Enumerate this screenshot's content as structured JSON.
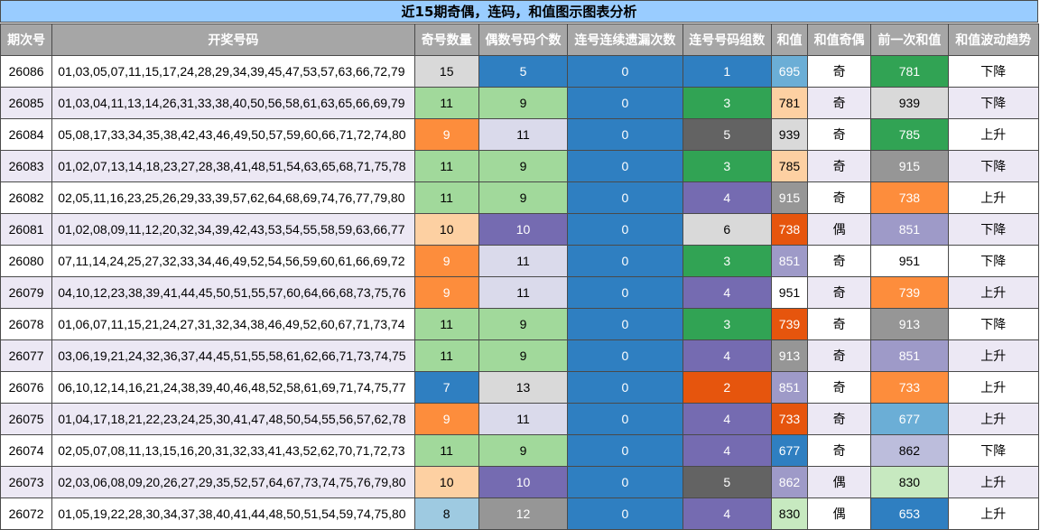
{
  "title": "近15期奇偶，连码，和值图示图表分析",
  "headers": [
    "期次号",
    "开奖号码",
    "奇号数量",
    "偶数号码个数",
    "连号连续遗漏次数",
    "连号号码组数",
    "和值",
    "和值奇偶",
    "前一次和值",
    "和值波动趋势"
  ],
  "colors": {
    "lightgray": "#d9d9d9",
    "blue": "#2f7fc1",
    "lightblue": "#6baed6",
    "paleblue": "#9ecae1",
    "orange": "#fd8d3c",
    "peach": "#fdd0a2",
    "darkorange": "#e6550d",
    "green": "#31a354",
    "lightgreen": "#a1d99b",
    "palegreen": "#c7e9c0",
    "purple": "#756bb1",
    "lavender": "#dadaeb",
    "midlavender": "#bcbddc",
    "slate": "#9e9ac8",
    "darkgray": "#636363",
    "gray": "#969696",
    "white": "#ffffff",
    "stripe": "#ece8f4"
  },
  "rows": [
    {
      "period": "26086",
      "draw": "01,03,05,07,11,15,17,24,28,29,34,39,45,47,53,57,63,66,72,79",
      "odd": "15",
      "odd_bg": "lightgray",
      "even": "5",
      "even_bg": "blue",
      "miss": "0",
      "groups": "1",
      "groups_bg": "blue",
      "sum": "695",
      "sum_bg": "lightblue",
      "parity": "奇",
      "prev": "781",
      "prev_bg": "green",
      "trend": "下降"
    },
    {
      "period": "26085",
      "draw": "01,03,04,11,13,14,26,31,33,38,40,50,56,58,61,63,65,66,69,79",
      "odd": "11",
      "odd_bg": "lightgreen",
      "even": "9",
      "even_bg": "lightgreen",
      "miss": "0",
      "groups": "3",
      "groups_bg": "green",
      "sum": "781",
      "sum_bg": "peach",
      "parity": "奇",
      "prev": "939",
      "prev_bg": "lightgray",
      "trend": "下降"
    },
    {
      "period": "26084",
      "draw": "05,08,17,33,34,35,38,42,43,46,49,50,57,59,60,66,71,72,74,80",
      "odd": "9",
      "odd_bg": "orange",
      "even": "11",
      "even_bg": "lavender",
      "miss": "0",
      "groups": "5",
      "groups_bg": "darkgray",
      "sum": "939",
      "sum_bg": "lightgray",
      "parity": "奇",
      "prev": "785",
      "prev_bg": "green",
      "trend": "上升"
    },
    {
      "period": "26083",
      "draw": "01,02,07,13,14,18,23,27,28,38,41,48,51,54,63,65,68,71,75,78",
      "odd": "11",
      "odd_bg": "lightgreen",
      "even": "9",
      "even_bg": "lightgreen",
      "miss": "0",
      "groups": "3",
      "groups_bg": "green",
      "sum": "785",
      "sum_bg": "peach",
      "parity": "奇",
      "prev": "915",
      "prev_bg": "gray",
      "trend": "下降"
    },
    {
      "period": "26082",
      "draw": "02,05,11,16,23,25,26,29,33,39,57,62,64,68,69,74,76,77,79,80",
      "odd": "11",
      "odd_bg": "lightgreen",
      "even": "9",
      "even_bg": "lightgreen",
      "miss": "0",
      "groups": "4",
      "groups_bg": "purple",
      "sum": "915",
      "sum_bg": "gray",
      "parity": "奇",
      "prev": "738",
      "prev_bg": "orange",
      "trend": "上升"
    },
    {
      "period": "26081",
      "draw": "01,02,08,09,11,12,20,32,34,39,42,43,53,54,55,58,59,63,66,77",
      "odd": "10",
      "odd_bg": "peach",
      "even": "10",
      "even_bg": "purple",
      "miss": "0",
      "groups": "6",
      "groups_bg": "lightgray",
      "sum": "738",
      "sum_bg": "darkorange",
      "parity": "偶",
      "prev": "851",
      "prev_bg": "slate",
      "trend": "下降"
    },
    {
      "period": "26080",
      "draw": "07,11,14,24,25,27,32,33,34,46,49,52,54,56,59,60,61,66,69,72",
      "odd": "9",
      "odd_bg": "orange",
      "even": "11",
      "even_bg": "lavender",
      "miss": "0",
      "groups": "3",
      "groups_bg": "green",
      "sum": "851",
      "sum_bg": "slate",
      "parity": "奇",
      "prev": "951",
      "prev_bg": "white",
      "trend": "下降"
    },
    {
      "period": "26079",
      "draw": "04,10,12,23,38,39,41,44,45,50,51,55,57,60,64,66,68,73,75,76",
      "odd": "9",
      "odd_bg": "orange",
      "even": "11",
      "even_bg": "lavender",
      "miss": "0",
      "groups": "4",
      "groups_bg": "purple",
      "sum": "951",
      "sum_bg": "white",
      "parity": "奇",
      "prev": "739",
      "prev_bg": "orange",
      "trend": "上升"
    },
    {
      "period": "26078",
      "draw": "01,06,07,11,15,21,24,27,31,32,34,38,46,49,52,60,67,71,73,74",
      "odd": "11",
      "odd_bg": "lightgreen",
      "even": "9",
      "even_bg": "lightgreen",
      "miss": "0",
      "groups": "3",
      "groups_bg": "green",
      "sum": "739",
      "sum_bg": "darkorange",
      "parity": "奇",
      "prev": "913",
      "prev_bg": "gray",
      "trend": "下降"
    },
    {
      "period": "26077",
      "draw": "03,06,19,21,24,32,36,37,44,45,51,55,58,61,62,66,71,73,74,75",
      "odd": "11",
      "odd_bg": "lightgreen",
      "even": "9",
      "even_bg": "lightgreen",
      "miss": "0",
      "groups": "4",
      "groups_bg": "purple",
      "sum": "913",
      "sum_bg": "gray",
      "parity": "奇",
      "prev": "851",
      "prev_bg": "slate",
      "trend": "上升"
    },
    {
      "period": "26076",
      "draw": "06,10,12,14,16,21,24,38,39,40,46,48,52,58,61,69,71,74,75,77",
      "odd": "7",
      "odd_bg": "blue",
      "even": "13",
      "even_bg": "lightgray",
      "miss": "0",
      "groups": "2",
      "groups_bg": "darkorange",
      "sum": "851",
      "sum_bg": "slate",
      "parity": "奇",
      "prev": "733",
      "prev_bg": "orange",
      "trend": "上升"
    },
    {
      "period": "26075",
      "draw": "01,04,17,18,21,22,23,24,25,30,41,47,48,50,54,55,56,57,62,78",
      "odd": "9",
      "odd_bg": "orange",
      "even": "11",
      "even_bg": "lavender",
      "miss": "0",
      "groups": "4",
      "groups_bg": "purple",
      "sum": "733",
      "sum_bg": "darkorange",
      "parity": "奇",
      "prev": "677",
      "prev_bg": "lightblue",
      "trend": "上升"
    },
    {
      "period": "26074",
      "draw": "02,05,07,08,11,13,15,16,20,31,32,33,41,43,52,62,70,71,72,73",
      "odd": "11",
      "odd_bg": "lightgreen",
      "even": "9",
      "even_bg": "lightgreen",
      "miss": "0",
      "groups": "4",
      "groups_bg": "purple",
      "sum": "677",
      "sum_bg": "blue",
      "parity": "奇",
      "prev": "862",
      "prev_bg": "midlavender",
      "trend": "下降"
    },
    {
      "period": "26073",
      "draw": "02,03,06,08,09,20,26,27,29,35,52,57,64,67,73,74,75,76,79,80",
      "odd": "10",
      "odd_bg": "peach",
      "even": "10",
      "even_bg": "purple",
      "miss": "0",
      "groups": "5",
      "groups_bg": "darkgray",
      "sum": "862",
      "sum_bg": "slate",
      "parity": "偶",
      "prev": "830",
      "prev_bg": "palegreen",
      "trend": "上升"
    },
    {
      "period": "26072",
      "draw": "01,05,19,22,28,30,34,37,38,40,41,44,48,50,51,54,59,74,75,80",
      "odd": "8",
      "odd_bg": "paleblue",
      "even": "12",
      "even_bg": "gray",
      "miss": "0",
      "groups": "4",
      "groups_bg": "purple",
      "sum": "830",
      "sum_bg": "palegreen",
      "parity": "偶",
      "prev": "653",
      "prev_bg": "blue",
      "trend": "上升"
    }
  ]
}
